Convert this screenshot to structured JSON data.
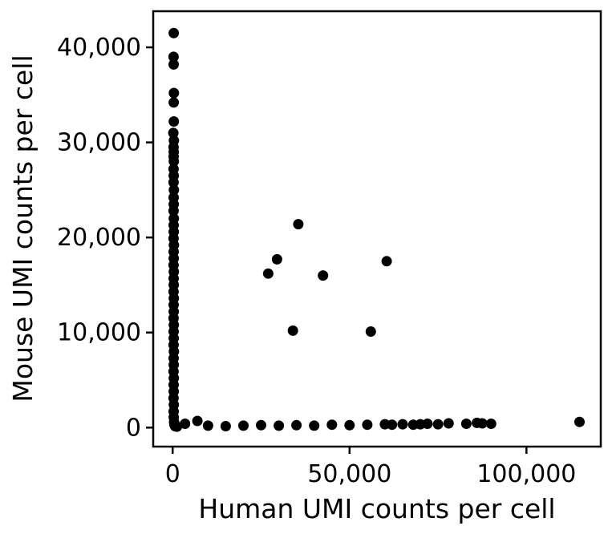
{
  "chart_data": {
    "type": "scatter",
    "xlabel": "Human UMI counts per cell",
    "ylabel": "Mouse UMI counts per cell",
    "xlim": [
      -5500,
      121000
    ],
    "ylim": [
      -2000,
      43800
    ],
    "xticks": [
      0,
      50000,
      100000
    ],
    "xtick_labels": [
      "0",
      "50,000",
      "100,000"
    ],
    "yticks": [
      0,
      10000,
      20000,
      30000,
      40000
    ],
    "ytick_labels": [
      "0",
      "10,000",
      "20,000",
      "30,000",
      "40,000"
    ],
    "grid": false,
    "legend": "none",
    "marker_color": "#000000",
    "series": [
      {
        "points": [
          [
            300,
            41500
          ],
          [
            250,
            39000
          ],
          [
            280,
            38200
          ],
          [
            350,
            35200
          ],
          [
            300,
            34200
          ],
          [
            320,
            32200
          ],
          [
            200,
            31000
          ],
          [
            350,
            30200
          ],
          [
            250,
            29500
          ],
          [
            300,
            29000
          ],
          [
            280,
            28500
          ],
          [
            320,
            28000
          ],
          [
            260,
            27200
          ],
          [
            300,
            26500
          ],
          [
            250,
            25800
          ],
          [
            350,
            25000
          ],
          [
            280,
            24200
          ],
          [
            300,
            23500
          ],
          [
            250,
            22800
          ],
          [
            320,
            22000
          ],
          [
            280,
            21300
          ],
          [
            300,
            20600
          ],
          [
            260,
            19900
          ],
          [
            340,
            19200
          ],
          [
            280,
            18500
          ],
          [
            300,
            17800
          ],
          [
            250,
            17100
          ],
          [
            320,
            16400
          ],
          [
            280,
            15700
          ],
          [
            300,
            15000
          ],
          [
            260,
            14300
          ],
          [
            330,
            13600
          ],
          [
            280,
            12900
          ],
          [
            300,
            12200
          ],
          [
            250,
            11500
          ],
          [
            320,
            10800
          ],
          [
            280,
            10100
          ],
          [
            300,
            9400
          ],
          [
            260,
            8700
          ],
          [
            340,
            8000
          ],
          [
            280,
            7300
          ],
          [
            300,
            6600
          ],
          [
            250,
            5900
          ],
          [
            320,
            5200
          ],
          [
            280,
            4500
          ],
          [
            300,
            3800
          ],
          [
            260,
            3100
          ],
          [
            330,
            2400
          ],
          [
            280,
            1700
          ],
          [
            300,
            1100
          ],
          [
            400,
            600
          ],
          [
            500,
            300
          ],
          [
            700,
            150
          ],
          [
            1200,
            100
          ],
          [
            27000,
            16200
          ],
          [
            29500,
            17700
          ],
          [
            35500,
            21400
          ],
          [
            34000,
            10200
          ],
          [
            42500,
            16000
          ],
          [
            56000,
            10100
          ],
          [
            60500,
            17500
          ],
          [
            3500,
            400
          ],
          [
            7000,
            700
          ],
          [
            10000,
            200
          ],
          [
            15000,
            150
          ],
          [
            20000,
            200
          ],
          [
            25000,
            250
          ],
          [
            30000,
            200
          ],
          [
            35000,
            250
          ],
          [
            40000,
            200
          ],
          [
            45000,
            300
          ],
          [
            50000,
            250
          ],
          [
            55000,
            300
          ],
          [
            60000,
            350
          ],
          [
            62000,
            300
          ],
          [
            65000,
            350
          ],
          [
            68000,
            300
          ],
          [
            70000,
            350
          ],
          [
            72000,
            400
          ],
          [
            75000,
            350
          ],
          [
            78000,
            450
          ],
          [
            83000,
            400
          ],
          [
            86000,
            500
          ],
          [
            87500,
            450
          ],
          [
            90000,
            400
          ],
          [
            115000,
            600
          ]
        ]
      }
    ]
  }
}
